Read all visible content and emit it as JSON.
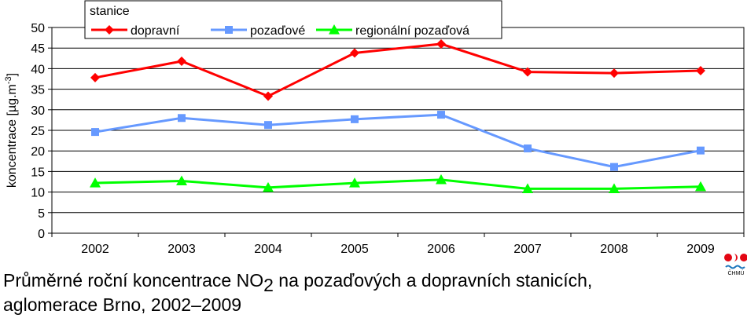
{
  "chart_data": {
    "type": "line",
    "x": [
      "2002",
      "2003",
      "2004",
      "2005",
      "2006",
      "2007",
      "2008",
      "2009"
    ],
    "series": [
      {
        "name": "dopravní",
        "color": "#ff0000",
        "marker": "diamond",
        "values": [
          37.8,
          41.8,
          33.3,
          43.8,
          46.0,
          39.2,
          38.9,
          39.5
        ]
      },
      {
        "name": "pozaďové",
        "color": "#6699ff",
        "marker": "square",
        "values": [
          24.6,
          28.0,
          26.3,
          27.7,
          28.8,
          20.6,
          16.1,
          20.1
        ]
      },
      {
        "name": "regionální pozaďová",
        "color": "#00ff00",
        "marker": "triangle",
        "values": [
          12.2,
          12.7,
          11.1,
          12.2,
          13.0,
          10.8,
          10.8,
          11.3
        ]
      }
    ],
    "ylabel": "koncentrace [µg.m-3]",
    "ylabel_main": "koncentrace [µg.m",
    "ylabel_sup": "-3",
    "ylabel_end": "]",
    "ylim": [
      0,
      50
    ],
    "yticks": [
      0,
      5,
      10,
      15,
      20,
      25,
      30,
      35,
      40,
      45,
      50
    ],
    "grid": true,
    "legend_title": "stanice",
    "legend_position": "top"
  },
  "caption": {
    "line1_before": "Průměrné roční koncentrace NO",
    "line1_sub": "2",
    "line1_after": " na pozaďových a dopravních stanicích,",
    "line2": "aglomerace Brno, 2002–2009"
  },
  "logo": {
    "text": "ČHMÚ",
    "colors": [
      "#e30613",
      "#1a75bb"
    ]
  }
}
